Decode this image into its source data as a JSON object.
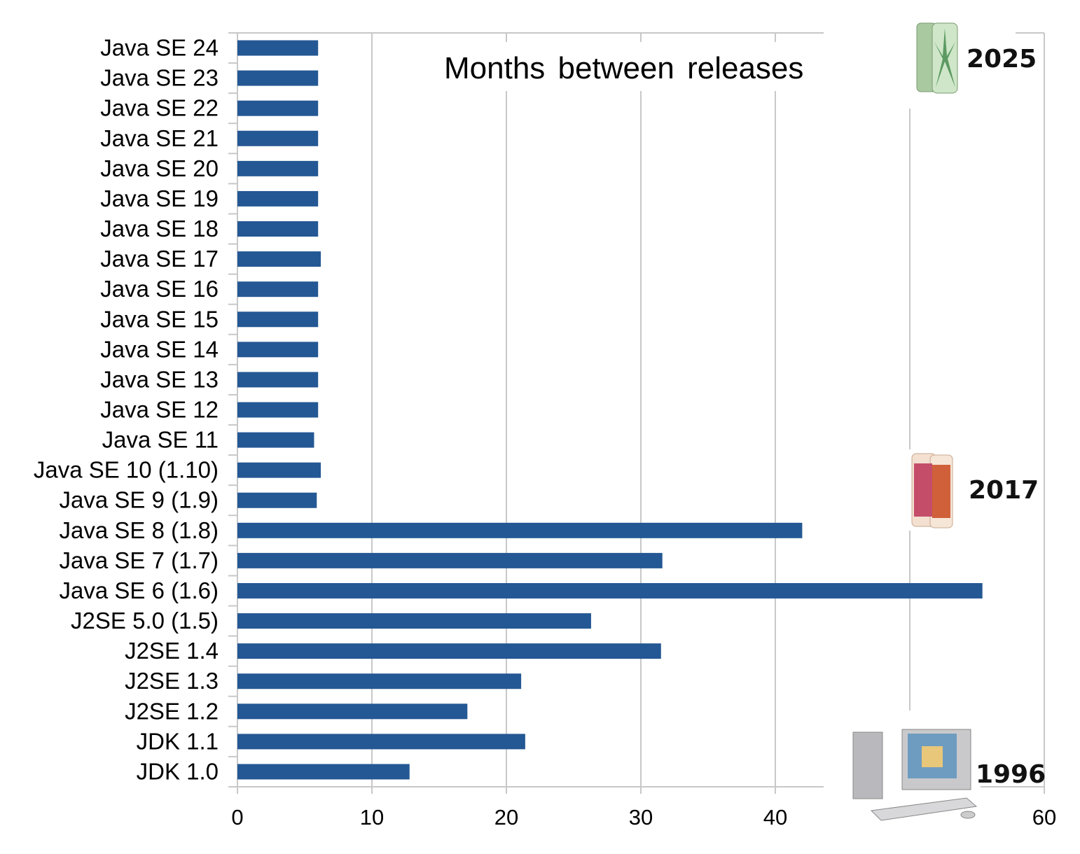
{
  "chart_data": {
    "type": "bar",
    "orientation": "horizontal",
    "title": "Months between releases",
    "xlabel": "",
    "ylabel": "",
    "xlim": [
      0,
      60
    ],
    "xticks": [
      0,
      10,
      20,
      30,
      40,
      60
    ],
    "grid": true,
    "categories": [
      "Java SE 24",
      "Java SE 23",
      "Java SE 22",
      "Java SE 21",
      "Java SE 20",
      "Java SE 19",
      "Java SE 18",
      "Java SE 17",
      "Java SE 16",
      "Java SE 15",
      "Java SE 14",
      "Java SE 13",
      "Java SE 12",
      "Java SE 11",
      "Java SE 10 (1.10)",
      "Java SE 9 (1.9)",
      "Java SE 8 (1.8)",
      "Java SE 7 (1.7)",
      "Java SE 6 (1.6)",
      "J2SE 5.0 (1.5)",
      "J2SE 1.4",
      "J2SE 1.3",
      "J2SE 1.2",
      "JDK 1.1",
      "JDK 1.0"
    ],
    "values": [
      6,
      6,
      6,
      6,
      6,
      6,
      6,
      6.2,
      6,
      6,
      6,
      6,
      6,
      5.7,
      6.2,
      5.9,
      42,
      31.6,
      55.4,
      26.3,
      31.5,
      21.1,
      17.1,
      21.4,
      12.8
    ],
    "bar_color": "#245894",
    "annotations": [
      "2025",
      "2017",
      "1996"
    ]
  }
}
